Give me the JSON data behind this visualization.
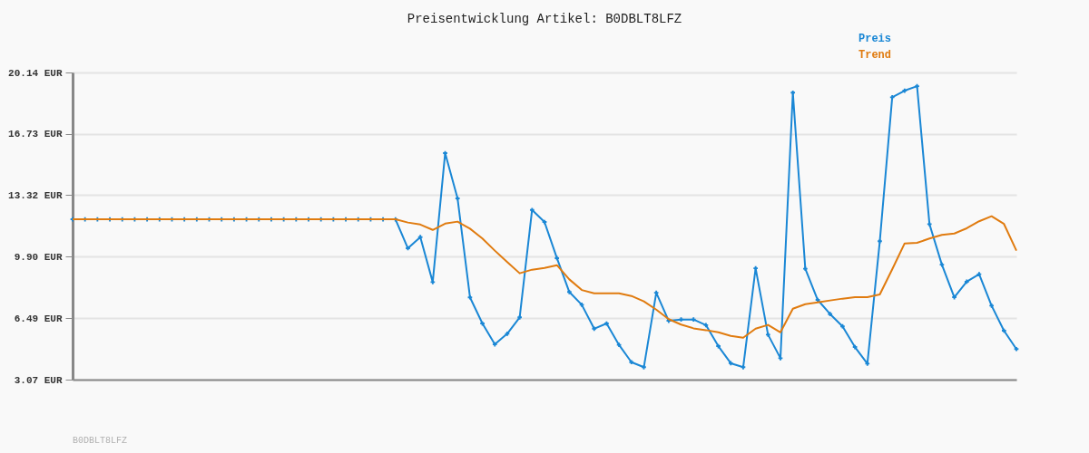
{
  "chart_data": {
    "type": "line",
    "title": "Preisentwicklung Artikel: B0DBLT8LFZ",
    "categories": [
      null,
      null,
      null,
      null,
      null,
      null,
      null,
      null,
      null,
      null,
      null,
      null,
      null,
      null,
      null,
      null,
      null,
      null,
      null,
      null,
      null,
      null,
      null,
      null,
      null,
      null,
      null,
      null,
      null,
      null,
      null,
      null,
      null,
      null,
      null,
      null,
      null,
      null,
      null,
      null,
      null,
      null,
      null,
      null,
      null,
      null,
      null,
      null,
      null,
      null,
      null,
      null,
      null,
      null,
      null,
      null,
      null,
      null,
      null,
      null,
      null,
      null,
      null,
      null,
      null,
      null,
      null,
      null,
      null,
      null,
      null,
      null,
      null,
      null,
      null,
      null,
      null
    ],
    "series": [
      {
        "name": "Preis",
        "color": "#1a87d5",
        "marker": "cross",
        "values": [
          11.98,
          11.98,
          11.98,
          11.98,
          11.98,
          11.98,
          11.98,
          11.98,
          11.98,
          11.98,
          11.98,
          11.98,
          11.98,
          11.98,
          11.98,
          11.98,
          11.98,
          11.98,
          11.98,
          11.98,
          11.98,
          11.98,
          11.98,
          11.98,
          11.98,
          11.98,
          11.98,
          10.37,
          10.99,
          8.49,
          15.66,
          13.14,
          7.64,
          6.19,
          5.03,
          5.62,
          6.53,
          12.5,
          11.83,
          9.82,
          7.94,
          7.23,
          5.9,
          6.19,
          5.0,
          4.04,
          3.76,
          7.9,
          6.34,
          6.41,
          6.41,
          6.1,
          4.93,
          3.98,
          3.76,
          9.26,
          5.57,
          4.26,
          19.02,
          9.23,
          7.5,
          6.71,
          6.03,
          4.88,
          3.96,
          10.76,
          18.76,
          19.13,
          19.38,
          11.71,
          9.46,
          7.65,
          8.51,
          8.93,
          7.18,
          5.79,
          4.77
        ]
      },
      {
        "name": "Trend",
        "color": "#e07b0f",
        "marker": "none",
        "values": [
          11.98,
          11.98,
          11.98,
          11.98,
          11.98,
          11.98,
          11.98,
          11.98,
          11.98,
          11.98,
          11.98,
          11.98,
          11.98,
          11.98,
          11.98,
          11.98,
          11.98,
          11.98,
          11.98,
          11.98,
          11.98,
          11.98,
          11.98,
          11.98,
          11.98,
          11.98,
          11.98,
          11.8,
          11.69,
          11.39,
          11.74,
          11.85,
          11.46,
          10.91,
          10.24,
          9.6,
          8.98,
          9.18,
          9.28,
          9.43,
          8.64,
          8.05,
          7.87,
          7.87,
          7.87,
          7.72,
          7.42,
          6.96,
          6.43,
          6.13,
          5.92,
          5.82,
          5.7,
          5.5,
          5.4,
          5.9,
          6.11,
          5.7,
          7.01,
          7.26,
          7.36,
          7.47,
          7.57,
          7.65,
          7.65,
          7.8,
          9.2,
          10.64,
          10.67,
          10.91,
          11.11,
          11.19,
          11.48,
          11.87,
          12.15,
          11.72,
          10.24
        ]
      }
    ],
    "ylim": [
      3.07,
      20.14
    ],
    "yticks": [
      {
        "value": 3.07,
        "label": "3.07 EUR"
      },
      {
        "value": 6.49,
        "label": "6.49 EUR"
      },
      {
        "value": 9.9,
        "label": "9.90 EUR"
      },
      {
        "value": 13.32,
        "label": "13.32 EUR"
      },
      {
        "value": 16.73,
        "label": "16.73 EUR"
      },
      {
        "value": 20.14,
        "label": "20.14 EUR"
      }
    ],
    "grid": "y",
    "legend": "top right",
    "tick_labels": "y",
    "line_style": "solid",
    "annotations": [
      "B0DBLT8LFZ"
    ]
  }
}
